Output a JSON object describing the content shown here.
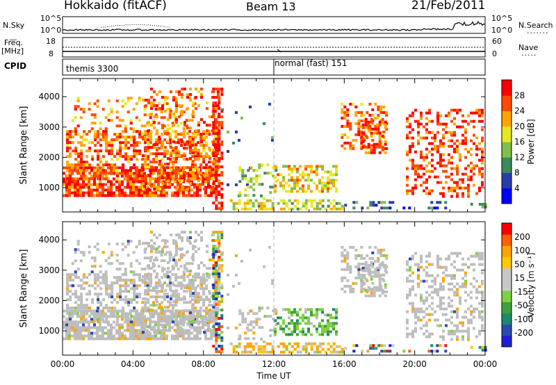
{
  "header": {
    "station": "Hokkaido (fitACF)",
    "beam": "Beam 13",
    "date": "21/Feb/2011"
  },
  "panels": {
    "nsky_label": "N.Sky",
    "nsearch_label": "N.Search",
    "freq_label_top": "Freq.",
    "freq_label_unit": "[MHz]",
    "nave_label": "Nave",
    "cpid_label": "CPID",
    "nsky_ticks": [
      "10^5",
      "10^0"
    ],
    "nsearch_ticks": [
      "10^5",
      "10^0"
    ],
    "freq_ticks": [
      "18",
      "8"
    ],
    "nave_ticks": [
      "60",
      "0"
    ],
    "cpid_segments": [
      "themis 3300",
      "normal (fast) 151"
    ]
  },
  "colors": {
    "power_scale": [
      "#0000ff",
      "#0000ff",
      "#2a3caa",
      "#2a3caa",
      "#3a8a5a",
      "#3a8a5a",
      "#7fc04a",
      "#7fc04a",
      "#e8e820",
      "#e8e820",
      "#ffa500",
      "#ffa500",
      "#ff4a00",
      "#ff4a00",
      "#ff0000",
      "#ff0000"
    ],
    "velocity_scale": [
      "#ff0000",
      "#ff6000",
      "#ffa500",
      "#ffc800",
      "#c8c8c8",
      "#c8c8c8",
      "#7fd040",
      "#40a040",
      "#1a8a6a",
      "#2a4ab0",
      "#2020d0"
    ],
    "scatter_gray": "#bdbdbd"
  },
  "chart_data": [
    {
      "type": "heatmap",
      "title": "Power",
      "ylabel": "Slant Range [km]",
      "xlabel": "Time UT",
      "x_ticks": [
        "00:00",
        "04:00",
        "08:00",
        "12:00",
        "16:00",
        "20:00",
        "00:00"
      ],
      "y_ticks": [
        1000,
        2000,
        3000,
        4000
      ],
      "xlim_hours": [
        0,
        24
      ],
      "ylim_km": [
        200,
        4600
      ],
      "colorbar_label": "Power [dB]",
      "colorbar_ticks": [
        "4",
        "8",
        "12",
        "16",
        "20",
        "24",
        "28"
      ]
    },
    {
      "type": "heatmap",
      "title": "Velocity",
      "ylabel": "Slant Range [km]",
      "xlabel": "Time UT",
      "x_ticks": [
        "00:00",
        "04:00",
        "08:00",
        "12:00",
        "16:00",
        "20:00",
        "00:00"
      ],
      "y_ticks": [
        1000,
        2000,
        3000,
        4000
      ],
      "xlim_hours": [
        0,
        24
      ],
      "ylim_km": [
        200,
        4600
      ],
      "colorbar_label": "Velocity [m s⁻¹]",
      "colorbar_ticks": [
        "200",
        "100",
        "50",
        "15",
        "-15",
        "-50",
        "-100",
        "-200"
      ]
    }
  ]
}
